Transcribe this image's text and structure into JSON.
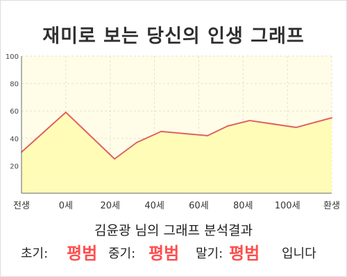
{
  "title": "재미로 보는 당신의 인생 그래프",
  "chart_data": {
    "type": "area",
    "x_labels": [
      "전생",
      "0세",
      "20세",
      "40세",
      "60세",
      "80세",
      "100세",
      "환생"
    ],
    "x": [
      -20,
      0,
      20,
      40,
      60,
      80,
      100,
      120
    ],
    "points": [
      {
        "x": -20,
        "y": 30
      },
      {
        "x": 0,
        "y": 59
      },
      {
        "x": 22,
        "y": 25
      },
      {
        "x": 32,
        "y": 37
      },
      {
        "x": 43,
        "y": 45
      },
      {
        "x": 64,
        "y": 42
      },
      {
        "x": 73,
        "y": 49
      },
      {
        "x": 83,
        "y": 53
      },
      {
        "x": 104,
        "y": 48
      },
      {
        "x": 120,
        "y": 55
      }
    ],
    "y_ticks": [
      20,
      40,
      60,
      80,
      100
    ],
    "ylim": [
      0,
      100
    ],
    "xlim": [
      -20,
      120
    ],
    "grid": true,
    "line_color": "#e06060",
    "fill_color": "#fffcb8",
    "plot_bg": "#fffde8"
  },
  "result": {
    "name_line": "김윤광 님의 그래프 분석결과",
    "early_label": "초기:",
    "early_value": "평범",
    "middle_label": "중기:",
    "middle_value": "평범",
    "late_label": "말기:",
    "late_value": "평범",
    "suffix": "입니다"
  },
  "colors": {
    "accent": "#ff4d4d",
    "title": "#2f2f2f"
  }
}
